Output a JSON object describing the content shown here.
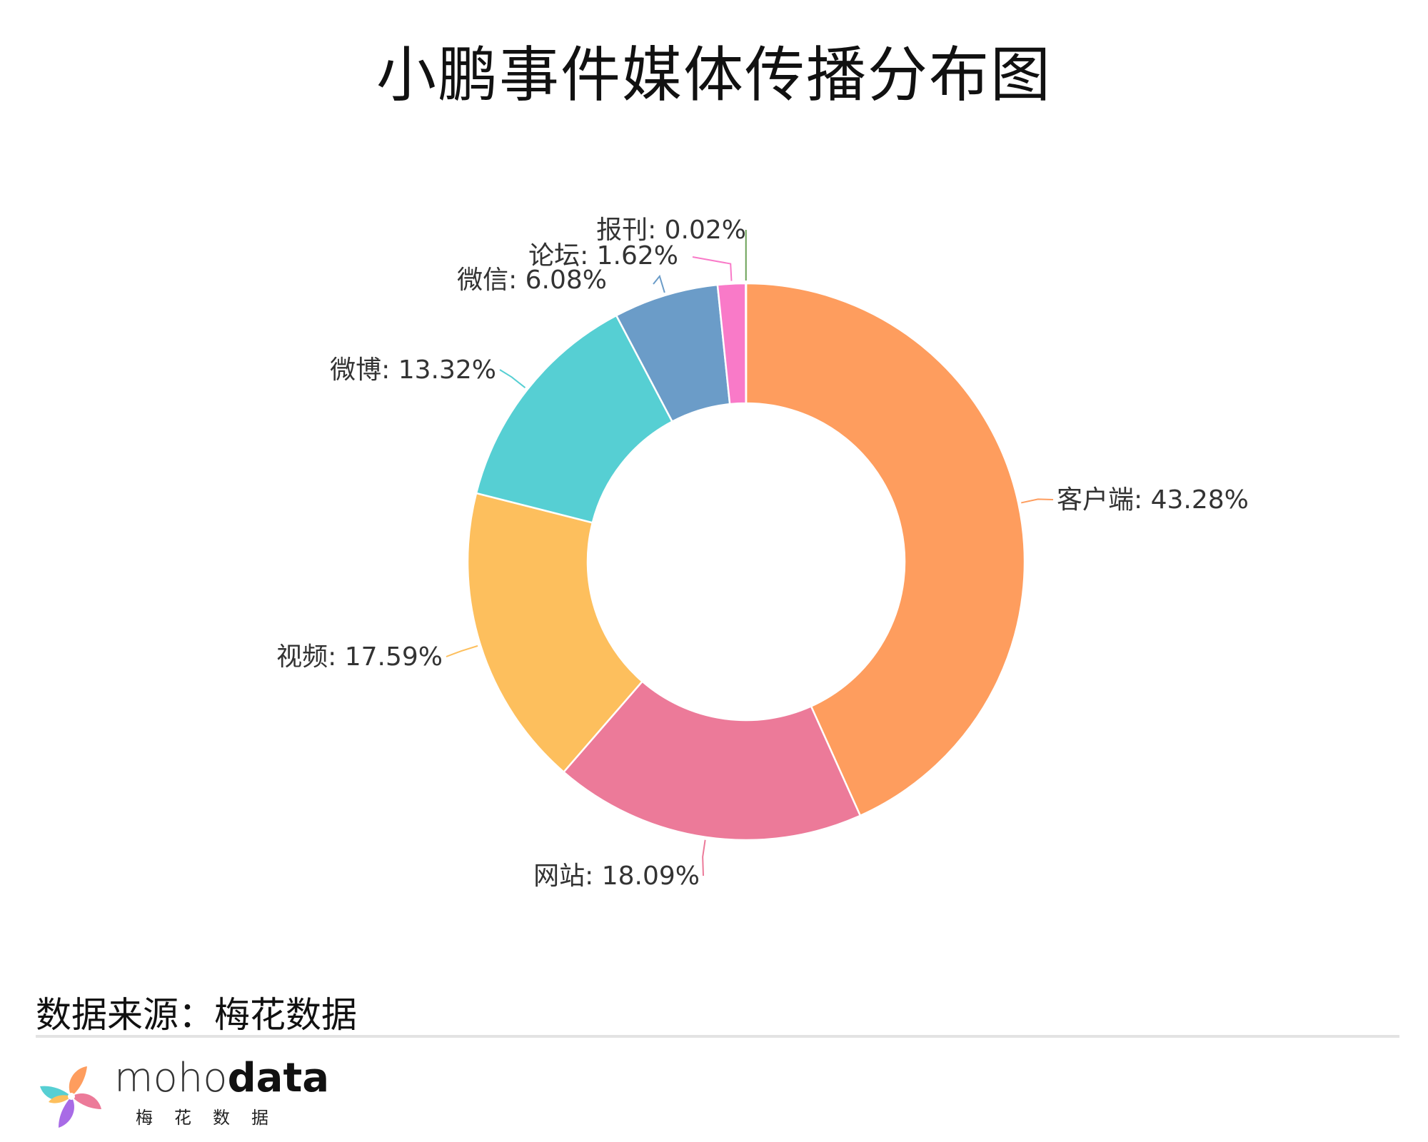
{
  "title": "小鹏事件媒体传播分布图",
  "source": "数据来源：梅花数据",
  "brand": {
    "name_light": "moho",
    "name_bold": "data",
    "subtitle": "梅花数据",
    "logo_icon": "pinwheel-icon"
  },
  "chart_data": {
    "type": "pie",
    "style": "donut",
    "unit": "%",
    "start_angle": "12 o'clock, clockwise",
    "slices": [
      {
        "label": "客户端",
        "value": 43.28,
        "display": "客户端: 43.28%",
        "color": "#FE9D5E"
      },
      {
        "label": "网站",
        "value": 18.09,
        "display": "网站: 18.09%",
        "color": "#EC7A99"
      },
      {
        "label": "视频",
        "value": 17.59,
        "display": "视频: 17.59%",
        "color": "#FDBF5D"
      },
      {
        "label": "微博",
        "value": 13.32,
        "display": "微博: 13.32%",
        "color": "#56CFD3"
      },
      {
        "label": "微信",
        "value": 6.08,
        "display": "微信: 6.08%",
        "color": "#6B9CC8"
      },
      {
        "label": "论坛",
        "value": 1.62,
        "display": "论坛: 1.62%",
        "color": "#F97AC8"
      },
      {
        "label": "报刊",
        "value": 0.02,
        "display": "报刊: 0.02%",
        "color": "#6BA257"
      }
    ]
  }
}
